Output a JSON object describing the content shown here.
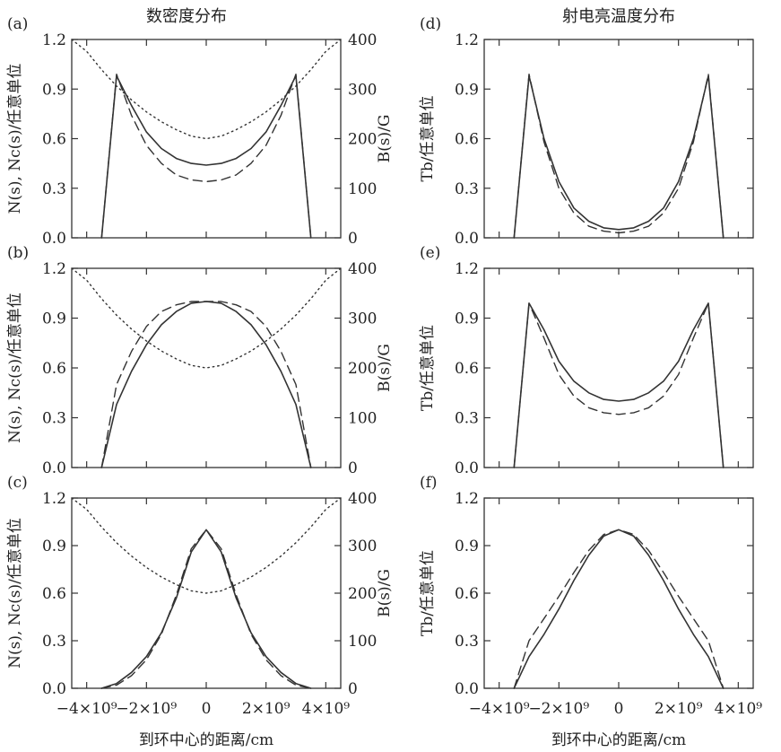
{
  "figure": {
    "column_titles": [
      "数密度分布",
      "射电亮温度分布"
    ],
    "x_tick_labels": [
      "−4×10⁹",
      "−2×10⁹",
      "0",
      "2×10⁹",
      "4×10⁹"
    ],
    "xlabel": "到环中心的距离/cm"
  },
  "chart_data": [
    {
      "id": "a",
      "panel_label": "(a)",
      "type": "line",
      "ylabel": "N(s), Nc(s)/任意单位",
      "y2label": "B(s)/G",
      "xlim": [
        -4500000000.0,
        4500000000.0
      ],
      "ylim": [
        0,
        1.2
      ],
      "y2lim": [
        0,
        400
      ],
      "yticks": [
        "0.0",
        "0.3",
        "0.6",
        "0.9",
        "1.2"
      ],
      "y2ticks": [
        "0",
        "100",
        "200",
        "300",
        "400"
      ],
      "x": [
        -4500000000.0,
        -4000000000.0,
        -3500000000.0,
        -3000000000.0,
        -2500000000.0,
        -2000000000.0,
        -1500000000.0,
        -1000000000.0,
        -500000000.0,
        0,
        500000000.0,
        1000000000.0,
        1500000000.0,
        2000000000.0,
        2500000000.0,
        3000000000.0,
        3500000000.0,
        4000000000.0,
        4500000000.0
      ],
      "series": [
        {
          "style": "solid",
          "axis": "left",
          "values": [
            null,
            null,
            0.0,
            0.98,
            0.8,
            0.64,
            0.54,
            0.48,
            0.45,
            0.44,
            0.45,
            0.48,
            0.54,
            0.64,
            0.8,
            0.98,
            0.0,
            null,
            null
          ]
        },
        {
          "style": "dashed",
          "axis": "left",
          "values": [
            null,
            null,
            0.0,
            0.99,
            0.74,
            0.56,
            0.45,
            0.38,
            0.35,
            0.34,
            0.35,
            0.38,
            0.45,
            0.56,
            0.74,
            0.99,
            0.0,
            null,
            null
          ]
        },
        {
          "style": "dotted",
          "axis": "right",
          "values": [
            400,
            376,
            339,
            306,
            278,
            254,
            234,
            218,
            205,
            200,
            205,
            218,
            234,
            254,
            278,
            306,
            339,
            376,
            400
          ]
        }
      ]
    },
    {
      "id": "b",
      "panel_label": "(b)",
      "type": "line",
      "ylabel": "N(s), Nc(s)/任意单位",
      "y2label": "B(s)/G",
      "xlim": [
        -4500000000.0,
        4500000000.0
      ],
      "ylim": [
        0,
        1.2
      ],
      "y2lim": [
        0,
        400
      ],
      "yticks": [
        "0.0",
        "0.3",
        "0.6",
        "0.9",
        "1.2"
      ],
      "y2ticks": [
        "0",
        "100",
        "200",
        "300",
        "400"
      ],
      "x": [
        -4500000000.0,
        -4000000000.0,
        -3500000000.0,
        -3000000000.0,
        -2500000000.0,
        -2000000000.0,
        -1500000000.0,
        -1000000000.0,
        -500000000.0,
        0,
        500000000.0,
        1000000000.0,
        1500000000.0,
        2000000000.0,
        2500000000.0,
        3000000000.0,
        3500000000.0,
        4000000000.0,
        4500000000.0
      ],
      "series": [
        {
          "style": "solid",
          "axis": "left",
          "values": [
            null,
            null,
            0.0,
            0.38,
            0.58,
            0.74,
            0.86,
            0.94,
            0.99,
            1.0,
            0.99,
            0.94,
            0.86,
            0.74,
            0.58,
            0.38,
            0.0,
            null,
            null
          ]
        },
        {
          "style": "dashed",
          "axis": "left",
          "values": [
            null,
            null,
            0.0,
            0.5,
            0.7,
            0.85,
            0.94,
            0.98,
            1.0,
            1.0,
            1.0,
            0.98,
            0.94,
            0.85,
            0.7,
            0.5,
            0.0,
            null,
            null
          ]
        },
        {
          "style": "dotted",
          "axis": "right",
          "values": [
            400,
            376,
            339,
            306,
            278,
            254,
            234,
            218,
            205,
            200,
            205,
            218,
            234,
            254,
            278,
            306,
            339,
            376,
            400
          ]
        }
      ]
    },
    {
      "id": "c",
      "panel_label": "(c)",
      "type": "line",
      "ylabel": "N(s), Nc(s)/任意单位",
      "y2label": "B(s)/G",
      "xlim": [
        -4500000000.0,
        4500000000.0
      ],
      "ylim": [
        0,
        1.2
      ],
      "y2lim": [
        0,
        400
      ],
      "yticks": [
        "0.0",
        "0.3",
        "0.6",
        "0.9",
        "1.2"
      ],
      "y2ticks": [
        "0",
        "100",
        "200",
        "300",
        "400"
      ],
      "x": [
        -4500000000.0,
        -4000000000.0,
        -3500000000.0,
        -3000000000.0,
        -2500000000.0,
        -2000000000.0,
        -1500000000.0,
        -1000000000.0,
        -500000000.0,
        0,
        500000000.0,
        1000000000.0,
        1500000000.0,
        2000000000.0,
        2500000000.0,
        3000000000.0,
        3500000000.0,
        4000000000.0,
        4500000000.0
      ],
      "series": [
        {
          "style": "solid",
          "axis": "left",
          "values": [
            null,
            null,
            0.0,
            0.03,
            0.1,
            0.2,
            0.35,
            0.57,
            0.86,
            1.0,
            0.86,
            0.57,
            0.35,
            0.2,
            0.1,
            0.03,
            0.0,
            null,
            null
          ]
        },
        {
          "style": "dashed",
          "axis": "left",
          "values": [
            null,
            null,
            0.0,
            0.02,
            0.08,
            0.18,
            0.34,
            0.59,
            0.88,
            1.0,
            0.88,
            0.59,
            0.34,
            0.18,
            0.08,
            0.02,
            0.0,
            null,
            null
          ]
        },
        {
          "style": "dotted",
          "axis": "right",
          "values": [
            400,
            376,
            339,
            306,
            278,
            254,
            234,
            218,
            205,
            200,
            205,
            218,
            234,
            254,
            278,
            306,
            339,
            376,
            400
          ]
        }
      ]
    },
    {
      "id": "d",
      "panel_label": "(d)",
      "type": "line",
      "ylabel": "Tb/任意单位",
      "xlim": [
        -4500000000.0,
        4500000000.0
      ],
      "ylim": [
        0,
        1.2
      ],
      "yticks": [
        "0.0",
        "0.3",
        "0.6",
        "0.9",
        "1.2"
      ],
      "x": [
        -4500000000.0,
        -4000000000.0,
        -3500000000.0,
        -3000000000.0,
        -2500000000.0,
        -2000000000.0,
        -1500000000.0,
        -1000000000.0,
        -500000000.0,
        0,
        500000000.0,
        1000000000.0,
        1500000000.0,
        2000000000.0,
        2500000000.0,
        3000000000.0,
        3500000000.0,
        4000000000.0,
        4500000000.0
      ],
      "series": [
        {
          "style": "solid",
          "axis": "left",
          "values": [
            null,
            null,
            0.0,
            0.98,
            0.6,
            0.34,
            0.18,
            0.1,
            0.06,
            0.05,
            0.06,
            0.1,
            0.18,
            0.34,
            0.6,
            0.98,
            0.0,
            null,
            null
          ]
        },
        {
          "style": "dashed",
          "axis": "left",
          "values": [
            null,
            null,
            0.0,
            0.99,
            0.58,
            0.3,
            0.15,
            0.07,
            0.04,
            0.03,
            0.04,
            0.07,
            0.15,
            0.3,
            0.58,
            0.99,
            0.0,
            null,
            null
          ]
        }
      ]
    },
    {
      "id": "e",
      "panel_label": "(e)",
      "type": "line",
      "ylabel": "Tb/任意单位",
      "xlim": [
        -4500000000.0,
        4500000000.0
      ],
      "ylim": [
        0,
        1.2
      ],
      "yticks": [
        "0.0",
        "0.3",
        "0.6",
        "0.9",
        "1.2"
      ],
      "x": [
        -4500000000.0,
        -4000000000.0,
        -3500000000.0,
        -3000000000.0,
        -2500000000.0,
        -2000000000.0,
        -1500000000.0,
        -1000000000.0,
        -500000000.0,
        0,
        500000000.0,
        1000000000.0,
        1500000000.0,
        2000000000.0,
        2500000000.0,
        3000000000.0,
        3500000000.0,
        4000000000.0,
        4500000000.0
      ],
      "series": [
        {
          "style": "solid",
          "axis": "left",
          "values": [
            null,
            null,
            0.0,
            0.99,
            0.83,
            0.64,
            0.52,
            0.45,
            0.41,
            0.4,
            0.41,
            0.45,
            0.52,
            0.64,
            0.83,
            0.99,
            0.0,
            null,
            null
          ]
        },
        {
          "style": "dashed",
          "axis": "left",
          "values": [
            null,
            null,
            0.0,
            0.99,
            0.78,
            0.56,
            0.43,
            0.36,
            0.33,
            0.32,
            0.33,
            0.36,
            0.43,
            0.56,
            0.78,
            0.99,
            0.0,
            null,
            null
          ]
        }
      ]
    },
    {
      "id": "f",
      "panel_label": "(f)",
      "type": "line",
      "ylabel": "Tb/任意单位",
      "xlim": [
        -4500000000.0,
        4500000000.0
      ],
      "ylim": [
        0,
        1.2
      ],
      "yticks": [
        "0.0",
        "0.3",
        "0.6",
        "0.9",
        "1.2"
      ],
      "x": [
        -4500000000.0,
        -4000000000.0,
        -3500000000.0,
        -3000000000.0,
        -2500000000.0,
        -2000000000.0,
        -1500000000.0,
        -1000000000.0,
        -500000000.0,
        0,
        500000000.0,
        1000000000.0,
        1500000000.0,
        2000000000.0,
        2500000000.0,
        3000000000.0,
        3500000000.0,
        4000000000.0,
        4500000000.0
      ],
      "series": [
        {
          "style": "solid",
          "axis": "left",
          "values": [
            null,
            null,
            0.0,
            0.2,
            0.34,
            0.5,
            0.68,
            0.84,
            0.96,
            1.0,
            0.96,
            0.84,
            0.68,
            0.5,
            0.34,
            0.2,
            0.0,
            null,
            null
          ]
        },
        {
          "style": "dashed",
          "axis": "left",
          "values": [
            null,
            null,
            0.0,
            0.3,
            0.44,
            0.58,
            0.73,
            0.87,
            0.97,
            1.0,
            0.97,
            0.87,
            0.73,
            0.58,
            0.44,
            0.3,
            0.0,
            null,
            null
          ]
        }
      ]
    }
  ]
}
